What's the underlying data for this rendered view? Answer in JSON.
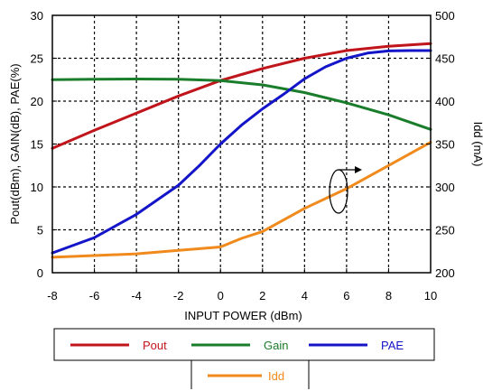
{
  "chart_data": {
    "type": "line",
    "xlabel": "INPUT POWER (dBm)",
    "ylabel": "Pout(dBm), GAIN(dB), PAE(%)",
    "y2label": "Idd (mA)",
    "xlim": [
      -8,
      10
    ],
    "ylim": [
      0,
      30
    ],
    "y2lim": [
      200,
      500
    ],
    "xticks": [
      "-8",
      "-6",
      "-4",
      "-2",
      "0",
      "2",
      "4",
      "6",
      "8",
      "10"
    ],
    "yticks": [
      "0",
      "5",
      "10",
      "15",
      "20",
      "25",
      "30"
    ],
    "y2ticks": [
      "200",
      "250",
      "300",
      "350",
      "400",
      "450",
      "500"
    ],
    "grid": true,
    "legend_position": "bottom",
    "series": [
      {
        "name": "Pout",
        "axis": "left",
        "color": "#c0151b",
        "x": [
          -8,
          -6,
          -4,
          -2,
          0,
          1,
          2,
          4,
          6,
          8,
          10
        ],
        "y": [
          14.5,
          16.6,
          18.6,
          20.6,
          22.4,
          23.1,
          23.8,
          25.0,
          25.9,
          26.4,
          26.7
        ]
      },
      {
        "name": "Gain",
        "axis": "left",
        "color": "#1a7d2c",
        "x": [
          -8,
          -6,
          -4,
          -2,
          0,
          2,
          4,
          6,
          8,
          10
        ],
        "y": [
          22.5,
          22.55,
          22.58,
          22.55,
          22.4,
          21.9,
          21.0,
          19.8,
          18.4,
          16.7
        ]
      },
      {
        "name": "PAE",
        "axis": "left",
        "color": "#1414c8",
        "x": [
          -8,
          -6,
          -4,
          -2,
          -1,
          0,
          1,
          2,
          3,
          4,
          5,
          6,
          7,
          8,
          9,
          10
        ],
        "y": [
          2.3,
          4.1,
          6.8,
          10.2,
          12.5,
          15.0,
          17.2,
          19.1,
          20.8,
          22.6,
          24.0,
          25.0,
          25.6,
          25.85,
          25.9,
          25.9
        ]
      },
      {
        "name": "Idd",
        "axis": "right",
        "color": "#f08a1c",
        "x": [
          -8,
          -6,
          -4,
          -2,
          0,
          1,
          2,
          4,
          6,
          8,
          10
        ],
        "y": [
          218,
          220,
          222,
          226,
          230,
          240,
          248,
          275,
          298,
          325,
          352
        ]
      }
    ],
    "legend_rows": [
      [
        "Pout",
        "Gain",
        "PAE"
      ],
      [
        "Idd"
      ]
    ]
  },
  "colors": {
    "background": "#ffffff",
    "axis": "#000000",
    "grid": "#000000"
  },
  "annotation_icon": "rotation-arrow-pointing-to-right-axis"
}
